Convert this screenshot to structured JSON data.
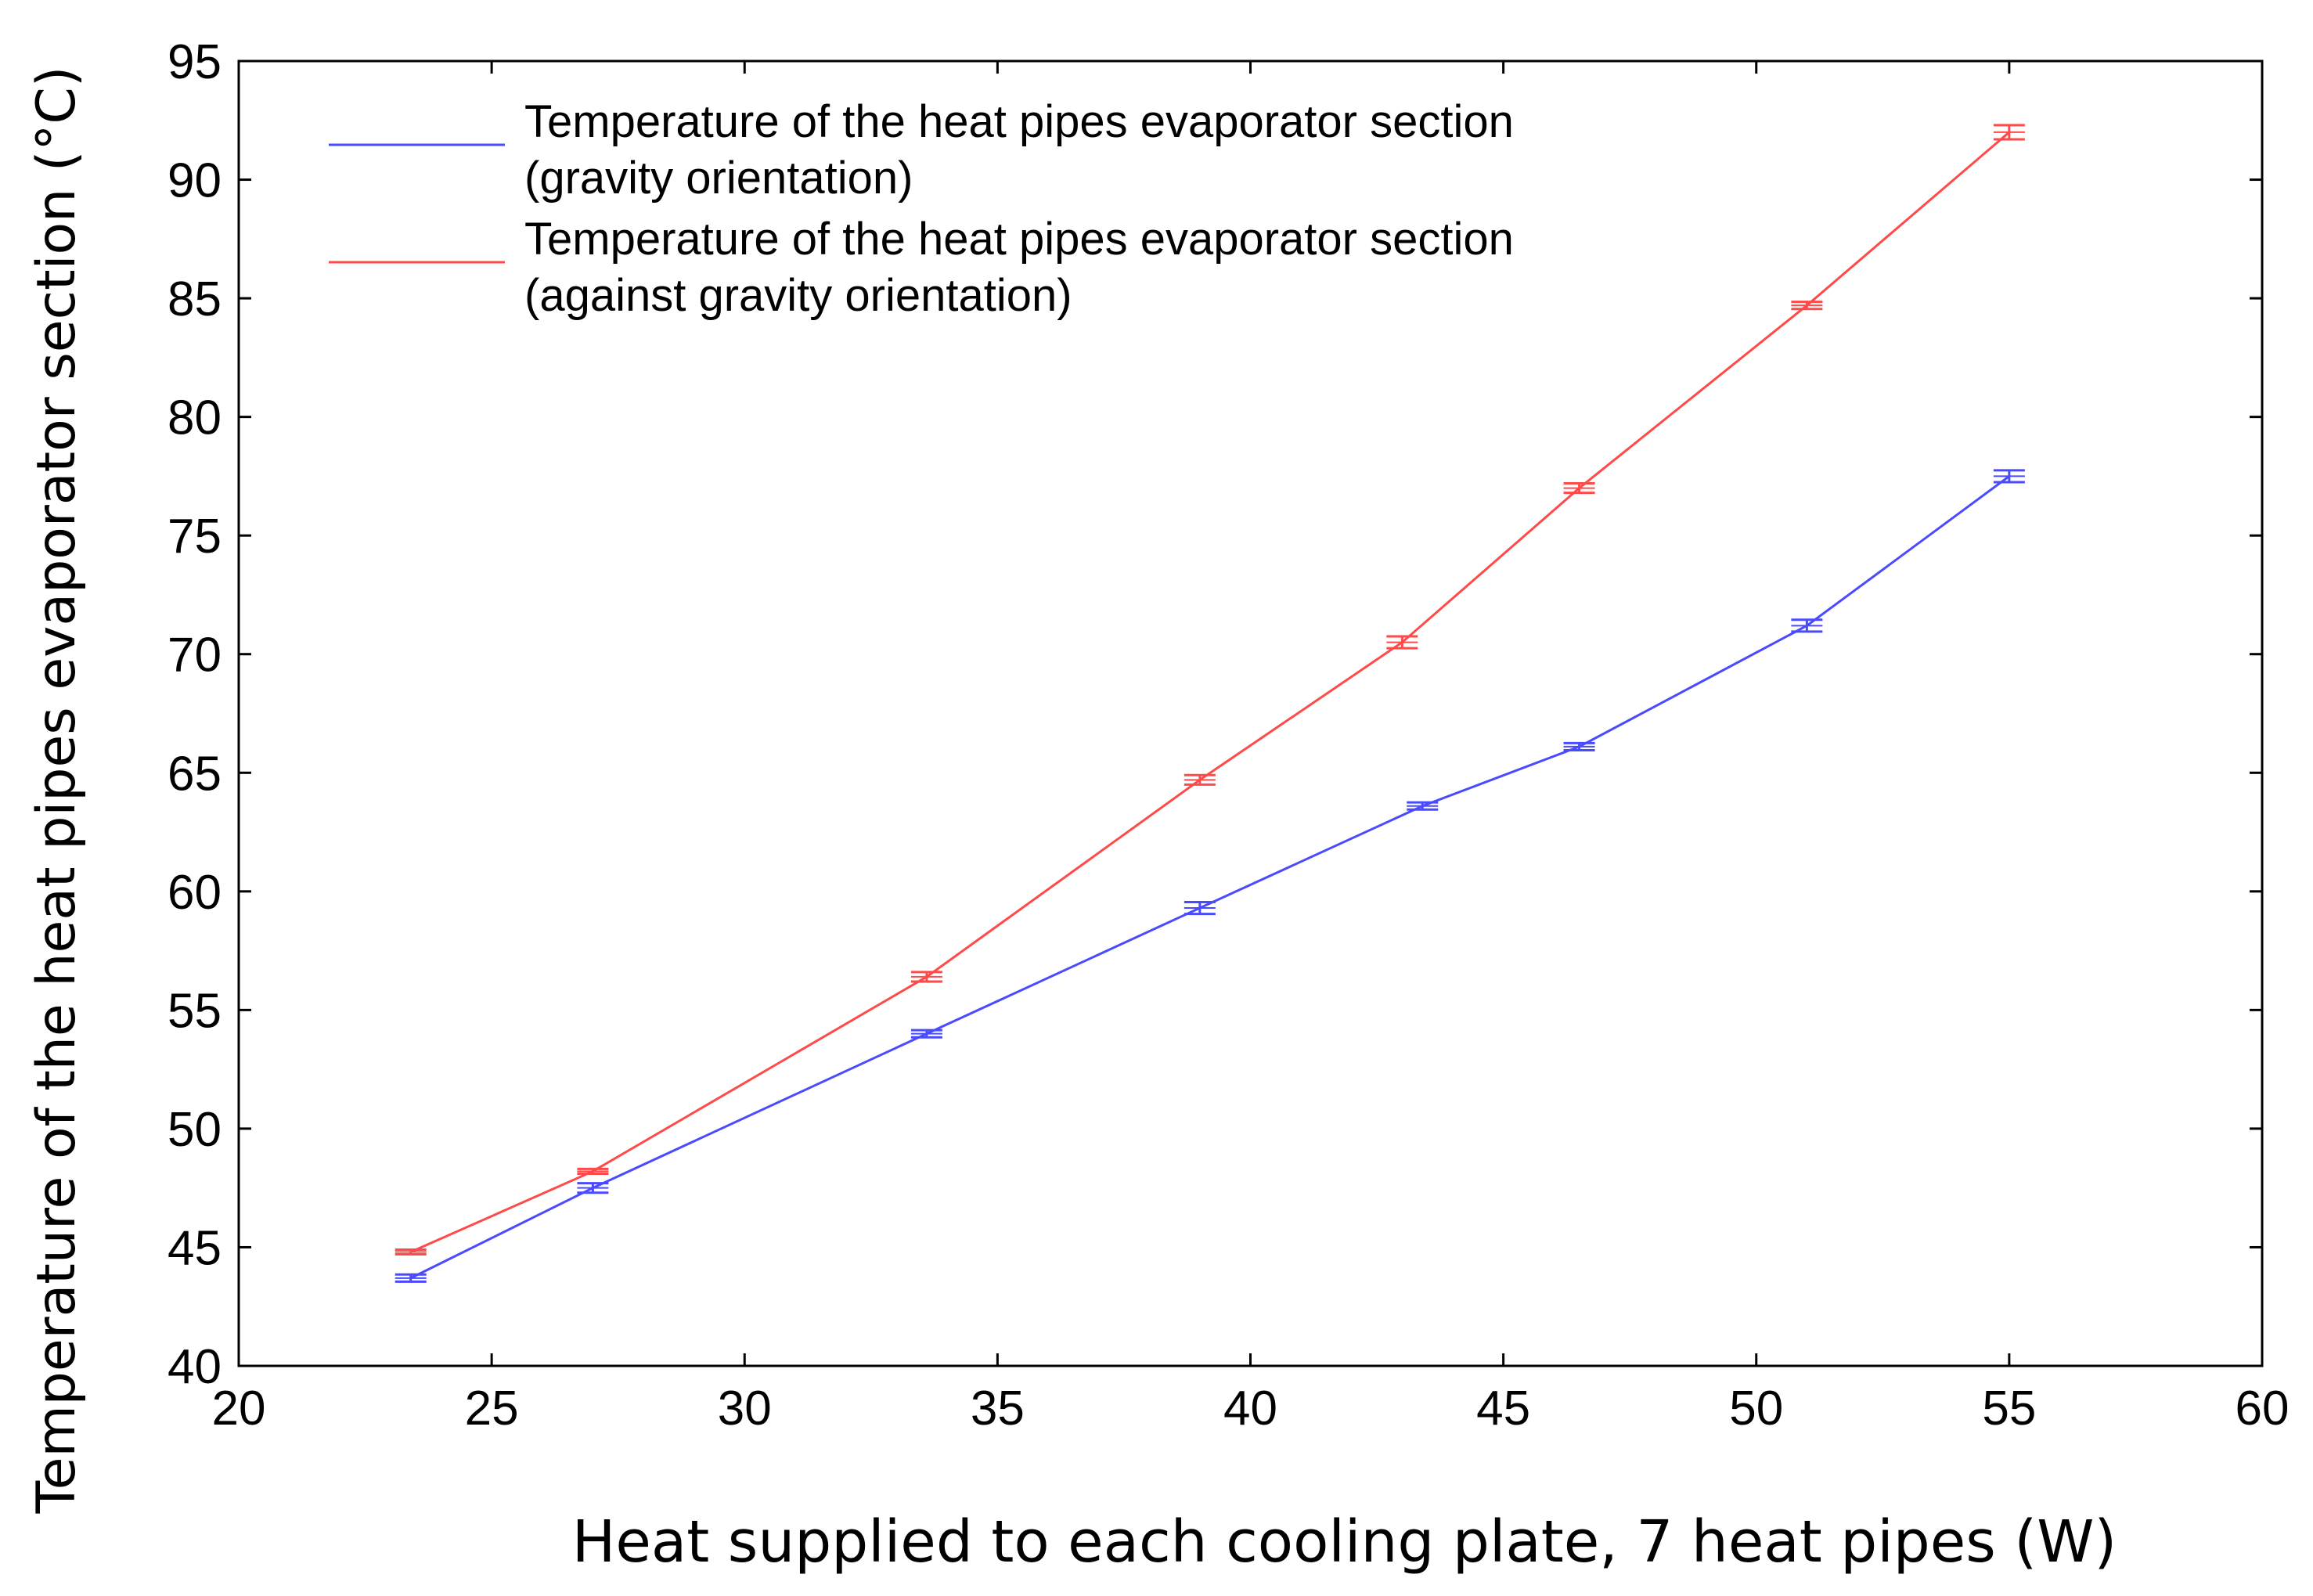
{
  "chart_data": {
    "type": "line",
    "title": "",
    "xlabel": "Heat supplied to each cooling plate, 7 heat pipes (W)",
    "ylabel": "Temperature of the heat pipes evaporator section (°C)",
    "xlim": [
      20,
      60
    ],
    "ylim": [
      40,
      95
    ],
    "xticks": [
      20,
      25,
      30,
      35,
      40,
      45,
      50,
      55,
      60
    ],
    "yticks": [
      40,
      45,
      50,
      55,
      60,
      65,
      70,
      75,
      80,
      85,
      90,
      95
    ],
    "grid": false,
    "legend_position": "top-left",
    "error_bars": true,
    "series": [
      {
        "name_lines": [
          "Temperature of the heat pipes evaporator section",
          "(gravity orientation)"
        ],
        "color": "#4a4aff",
        "x": [
          23.4,
          27,
          33.6,
          39,
          43.4,
          46.5,
          51,
          55
        ],
        "y": [
          43.7,
          47.5,
          54.0,
          59.3,
          63.6,
          66.1,
          71.2,
          77.5
        ],
        "err": [
          0.15,
          0.2,
          0.15,
          0.25,
          0.15,
          0.15,
          0.25,
          0.25
        ]
      },
      {
        "name_lines": [
          "Temperature of the heat pipes evaporator section",
          "(against gravity orientation)"
        ],
        "color": "#ff4a4a",
        "x": [
          23.4,
          27,
          33.6,
          39,
          43,
          46.5,
          51,
          55
        ],
        "y": [
          44.8,
          48.2,
          56.4,
          64.7,
          70.5,
          77.0,
          84.7,
          92.0
        ],
        "err": [
          0.1,
          0.1,
          0.2,
          0.2,
          0.25,
          0.2,
          0.15,
          0.3
        ]
      }
    ]
  }
}
